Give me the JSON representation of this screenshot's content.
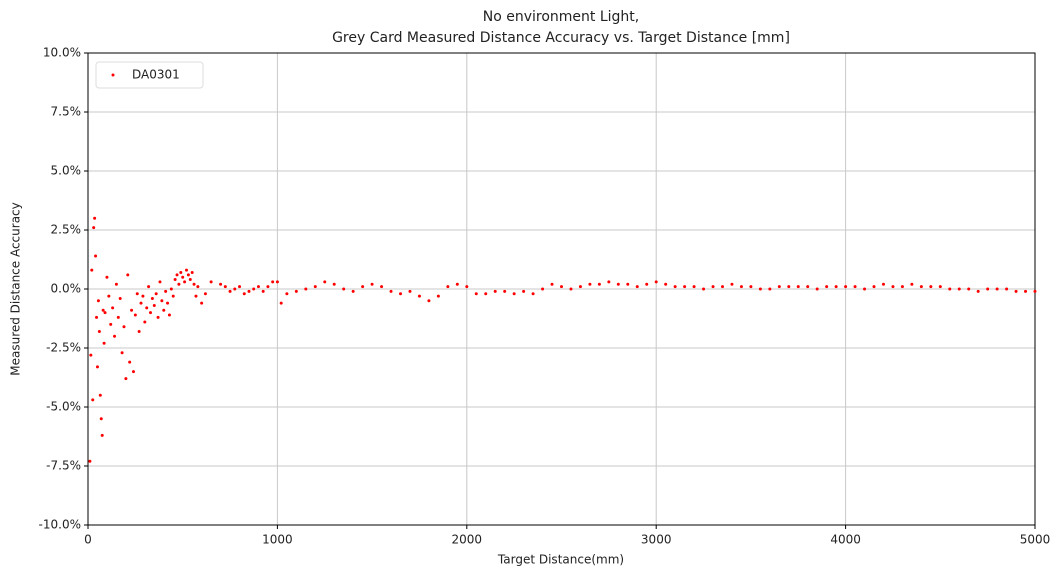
{
  "chart_data": {
    "type": "scatter",
    "title": [
      "No environment Light,",
      "Grey Card Measured Distance Accuracy vs. Target Distance [mm]"
    ],
    "x_label": "Target Distance(mm)",
    "y_label": "Measured Distance Accuracy",
    "xlim": [
      0,
      5000
    ],
    "xticks": [
      0,
      1000,
      2000,
      3000,
      4000,
      5000
    ],
    "ylim": [
      -10,
      10
    ],
    "yticks": [
      {
        "value": -10,
        "label": "-10.0%"
      },
      {
        "value": -7.5,
        "label": "-7.5%"
      },
      {
        "value": -5,
        "label": "-5.0%"
      },
      {
        "value": -2.5,
        "label": "-2.5%"
      },
      {
        "value": 0,
        "label": "0.0%"
      },
      {
        "value": 2.5,
        "label": "2.5%"
      },
      {
        "value": 5,
        "label": "5.0%"
      },
      {
        "value": 7.5,
        "label": "7.5%"
      },
      {
        "value": 10,
        "label": "10.0%"
      }
    ],
    "grid": true,
    "legend": "upper left",
    "x": [
      10,
      15,
      20,
      25,
      30,
      35,
      40,
      45,
      50,
      55,
      60,
      65,
      70,
      75,
      80,
      85,
      90,
      100,
      110,
      120,
      130,
      140,
      150,
      160,
      170,
      180,
      190,
      200,
      210,
      220,
      230,
      240,
      250,
      260,
      270,
      280,
      290,
      300,
      310,
      320,
      330,
      340,
      350,
      360,
      370,
      380,
      390,
      400,
      410,
      420,
      430,
      440,
      450,
      460,
      470,
      480,
      490,
      500,
      510,
      520,
      530,
      540,
      550,
      560,
      570,
      580,
      600,
      620,
      650,
      700,
      725,
      750,
      775,
      800,
      825,
      850,
      875,
      900,
      925,
      950,
      975,
      1000,
      1020,
      1050,
      1100,
      1150,
      1200,
      1250,
      1300,
      1350,
      1400,
      1450,
      1500,
      1550,
      1600,
      1650,
      1700,
      1750,
      1800,
      1850,
      1900,
      1950,
      2000,
      2050,
      2100,
      2150,
      2200,
      2250,
      2300,
      2350,
      2400,
      2450,
      2500,
      2550,
      2600,
      2650,
      2700,
      2750,
      2800,
      2850,
      2900,
      2950,
      3000,
      3050,
      3100,
      3150,
      3200,
      3250,
      3300,
      3350,
      3400,
      3450,
      3500,
      3550,
      3600,
      3650,
      3700,
      3750,
      3800,
      3850,
      3900,
      3950,
      4000,
      4050,
      4100,
      4150,
      4200,
      4250,
      4300,
      4350,
      4400,
      4450,
      4500,
      4550,
      4600,
      4650,
      4700,
      4750,
      4800,
      4850,
      4900,
      4950,
      5000
    ],
    "series": [
      {
        "name": "DA0301",
        "color": "#ff0000",
        "values": [
          -7.3,
          -2.8,
          0.8,
          -4.7,
          2.6,
          3.0,
          1.4,
          -1.2,
          -3.3,
          -0.5,
          -1.8,
          -4.5,
          -5.5,
          -6.2,
          -0.9,
          -2.3,
          -1.0,
          0.5,
          -0.3,
          -1.5,
          -0.8,
          -2.0,
          0.2,
          -1.2,
          -0.4,
          -2.7,
          -1.6,
          -3.8,
          0.6,
          -3.1,
          -0.9,
          -3.5,
          -1.1,
          -0.2,
          -1.8,
          -0.6,
          -0.3,
          -1.4,
          -0.8,
          0.1,
          -1.0,
          -0.4,
          -0.7,
          -0.2,
          -1.2,
          0.3,
          -0.5,
          -0.9,
          -0.1,
          -0.6,
          -1.1,
          0.0,
          -0.3,
          0.4,
          0.6,
          0.2,
          0.7,
          0.5,
          0.3,
          0.8,
          0.6,
          0.4,
          0.7,
          0.2,
          -0.3,
          0.1,
          -0.6,
          -0.2,
          0.3,
          0.2,
          0.1,
          -0.1,
          0.0,
          0.1,
          -0.2,
          -0.1,
          0.0,
          0.1,
          -0.1,
          0.1,
          0.3,
          0.3,
          -0.6,
          -0.2,
          -0.1,
          0.0,
          0.1,
          0.3,
          0.2,
          0.0,
          -0.1,
          0.1,
          0.2,
          0.1,
          -0.1,
          -0.2,
          -0.1,
          -0.3,
          -0.5,
          -0.3,
          0.1,
          0.2,
          0.1,
          -0.2,
          -0.2,
          -0.1,
          -0.1,
          -0.2,
          -0.1,
          -0.2,
          0.0,
          0.2,
          0.1,
          0.0,
          0.1,
          0.2,
          0.2,
          0.3,
          0.2,
          0.2,
          0.1,
          0.2,
          0.3,
          0.2,
          0.1,
          0.1,
          0.1,
          0.0,
          0.1,
          0.1,
          0.2,
          0.1,
          0.1,
          0.0,
          0.0,
          0.1,
          0.1,
          0.1,
          0.1,
          0.0,
          0.1,
          0.1,
          0.1,
          0.1,
          0.0,
          0.1,
          0.2,
          0.1,
          0.1,
          0.2,
          0.1,
          0.1,
          0.1,
          0.0,
          0.0,
          0.0,
          -0.1,
          0.0,
          0.0,
          0.0,
          -0.1,
          -0.1,
          -0.1
        ]
      }
    ]
  }
}
